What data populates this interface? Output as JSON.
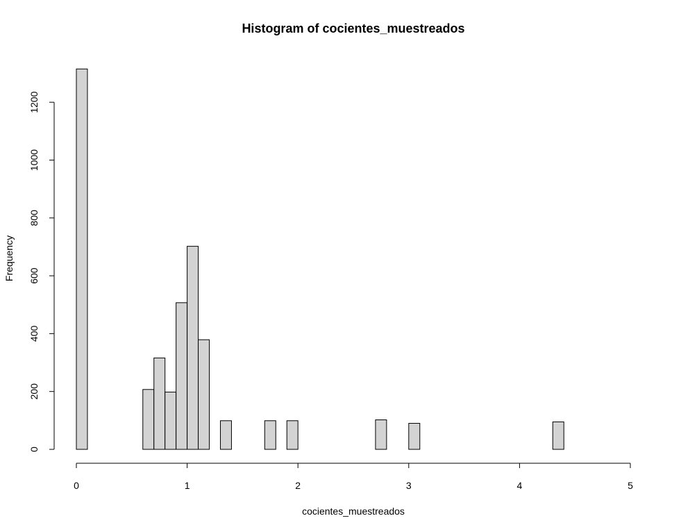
{
  "chart_data": {
    "type": "bar",
    "title": "Histogram of cocientes_muestreados",
    "xlabel": "cocientes_muestreados",
    "ylabel": "Frequency",
    "xlim": [
      0,
      5
    ],
    "ylim": [
      0,
      1300
    ],
    "x_ticks": [
      "0",
      "1",
      "2",
      "3",
      "4",
      "5"
    ],
    "y_ticks": [
      "0",
      "200",
      "400",
      "600",
      "800",
      "1000",
      "1200"
    ],
    "bin_width": 0.1,
    "bar_color": "#d3d3d3",
    "grid": false,
    "bins": [
      {
        "x0": 0.0,
        "x1": 0.1,
        "count": 1315
      },
      {
        "x0": 0.6,
        "x1": 0.7,
        "count": 207
      },
      {
        "x0": 0.7,
        "x1": 0.8,
        "count": 316
      },
      {
        "x0": 0.8,
        "x1": 0.9,
        "count": 198
      },
      {
        "x0": 0.9,
        "x1": 1.0,
        "count": 507
      },
      {
        "x0": 1.0,
        "x1": 1.1,
        "count": 702
      },
      {
        "x0": 1.1,
        "x1": 1.2,
        "count": 379
      },
      {
        "x0": 1.3,
        "x1": 1.4,
        "count": 99
      },
      {
        "x0": 1.7,
        "x1": 1.8,
        "count": 99
      },
      {
        "x0": 1.9,
        "x1": 2.0,
        "count": 99
      },
      {
        "x0": 2.7,
        "x1": 2.8,
        "count": 102
      },
      {
        "x0": 3.0,
        "x1": 3.1,
        "count": 90
      },
      {
        "x0": 4.3,
        "x1": 4.4,
        "count": 95
      }
    ]
  }
}
